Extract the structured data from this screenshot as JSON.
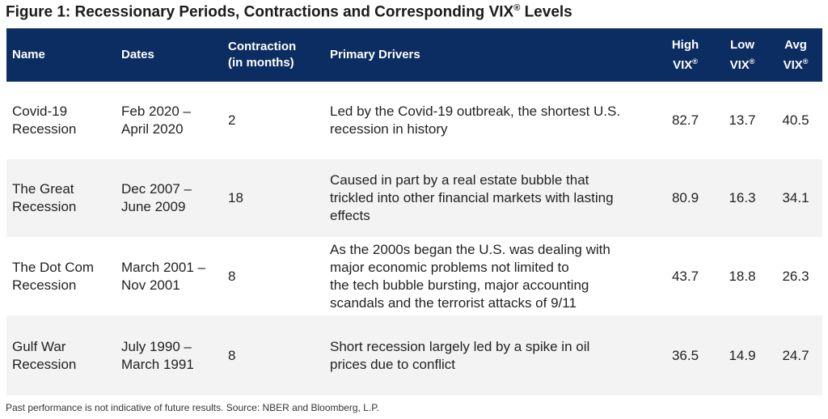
{
  "title": {
    "text": "Figure 1: Recessionary Periods, Contractions and Corresponding VIX",
    "mark": "®",
    "suffix": " Levels"
  },
  "table": {
    "headers": {
      "name": "Name",
      "dates": "Dates",
      "contraction_l1": "Contraction",
      "contraction_l2": "(in months)",
      "drivers": "Primary Drivers",
      "high_l1": "High",
      "low_l1": "Low",
      "avg_l1": "Avg",
      "vix": "VIX",
      "mark": "®"
    },
    "rows": [
      {
        "name_l1": "Covid-19",
        "name_l2": "Recession",
        "dates_l1": "Feb 2020 –",
        "dates_l2": "April 2020",
        "contraction": "2",
        "drivers": [
          "Led by the Covid-19 outbreak, the shortest U.S.",
          "recession in history"
        ],
        "high": "82.7",
        "low": "13.7",
        "avg": "40.5"
      },
      {
        "name_l1": "The Great",
        "name_l2": "Recession",
        "dates_l1": "Dec 2007 –",
        "dates_l2": "June 2009",
        "contraction": "18",
        "drivers": [
          "Caused in part by a real estate bubble that",
          "trickled into other financial markets with lasting",
          "effects"
        ],
        "high": "80.9",
        "low": "16.3",
        "avg": "34.1"
      },
      {
        "name_l1": "The Dot Com",
        "name_l2": "Recession",
        "dates_l1": "March 2001 –",
        "dates_l2": "Nov 2001",
        "contraction": "8",
        "drivers": [
          "As the 2000s began the U.S. was dealing with",
          "major economic problems not limited to",
          "the tech bubble bursting, major accounting",
          "scandals and the terrorist attacks of 9/11"
        ],
        "high": "43.7",
        "low": "18.8",
        "avg": "26.3"
      },
      {
        "name_l1": "Gulf War",
        "name_l2": "Recession",
        "dates_l1": "July 1990 –",
        "dates_l2": "March 1991",
        "contraction": "8",
        "drivers": [
          "Short recession largely led by a spike in oil",
          "prices due to conflict"
        ],
        "high": "36.5",
        "low": "14.9",
        "avg": "24.7"
      }
    ]
  },
  "footnote": "Past performance is not indicative of future results. Source: NBER and Bloomberg, L.P."
}
